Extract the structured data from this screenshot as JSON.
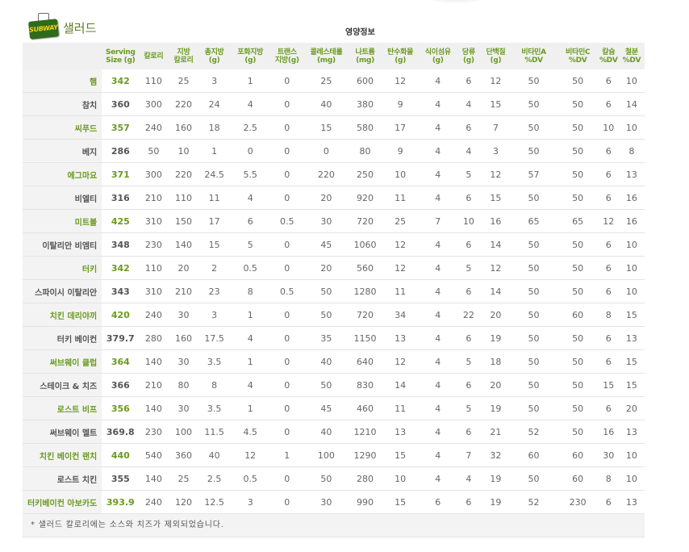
{
  "logo": {
    "text": "SUBWAY"
  },
  "section_title": "샐러드",
  "group_title": "영양정보",
  "columns": [
    [
      "Serving",
      "Size (g)"
    ],
    [
      "칼로리"
    ],
    [
      "지방",
      "칼로리"
    ],
    [
      "총지방",
      "(g)"
    ],
    [
      "포화지방",
      "(g)"
    ],
    [
      "트랜스",
      "지방(g)"
    ],
    [
      "콜레스테롤",
      "(mg)"
    ],
    [
      "나트륨",
      "(mg)"
    ],
    [
      "탄수화물",
      "(g)"
    ],
    [
      "식이섬유",
      "(g)"
    ],
    [
      "당류",
      "(g)"
    ],
    [
      "단백질",
      "(g)"
    ],
    [
      "비타민A",
      "%DV"
    ],
    [
      "비타민C",
      "%DV"
    ],
    [
      "칼슘",
      "%DV"
    ],
    [
      "철분",
      "%DV"
    ]
  ],
  "rows": [
    {
      "name": "햄",
      "hl": true,
      "values": [
        "342",
        "110",
        "25",
        "3",
        "1",
        "0",
        "25",
        "600",
        "12",
        "4",
        "6",
        "12",
        "50",
        "50",
        "6",
        "10"
      ]
    },
    {
      "name": "참치",
      "hl": false,
      "values": [
        "360",
        "300",
        "220",
        "24",
        "4",
        "0",
        "40",
        "380",
        "9",
        "4",
        "4",
        "15",
        "50",
        "50",
        "6",
        "14"
      ]
    },
    {
      "name": "씨푸드",
      "hl": true,
      "values": [
        "357",
        "240",
        "160",
        "18",
        "2.5",
        "0",
        "15",
        "580",
        "17",
        "4",
        "6",
        "7",
        "50",
        "50",
        "10",
        "10"
      ]
    },
    {
      "name": "베지",
      "hl": false,
      "values": [
        "286",
        "50",
        "10",
        "1",
        "0",
        "0",
        "0",
        "80",
        "9",
        "4",
        "4",
        "3",
        "50",
        "50",
        "6",
        "8"
      ]
    },
    {
      "name": "에그마요",
      "hl": true,
      "values": [
        "371",
        "300",
        "220",
        "24.5",
        "5.5",
        "0",
        "220",
        "250",
        "10",
        "4",
        "5",
        "12",
        "57",
        "50",
        "6",
        "13"
      ]
    },
    {
      "name": "비엘티",
      "hl": false,
      "values": [
        "316",
        "210",
        "110",
        "11",
        "4",
        "0",
        "20",
        "920",
        "11",
        "4",
        "6",
        "15",
        "50",
        "50",
        "6",
        "16"
      ]
    },
    {
      "name": "미트볼",
      "hl": true,
      "values": [
        "425",
        "310",
        "150",
        "17",
        "6",
        "0.5",
        "30",
        "720",
        "25",
        "7",
        "10",
        "16",
        "65",
        "65",
        "12",
        "16"
      ]
    },
    {
      "name": "이탈리안 비엠티",
      "hl": false,
      "values": [
        "348",
        "230",
        "140",
        "15",
        "5",
        "0",
        "45",
        "1060",
        "12",
        "4",
        "6",
        "14",
        "50",
        "50",
        "6",
        "10"
      ]
    },
    {
      "name": "터키",
      "hl": true,
      "values": [
        "342",
        "110",
        "20",
        "2",
        "0.5",
        "0",
        "20",
        "560",
        "12",
        "4",
        "5",
        "12",
        "50",
        "50",
        "6",
        "10"
      ]
    },
    {
      "name": "스파이시 이탈리안",
      "hl": false,
      "values": [
        "343",
        "310",
        "210",
        "23",
        "8",
        "0.5",
        "50",
        "1280",
        "11",
        "4",
        "6",
        "14",
        "50",
        "50",
        "6",
        "10"
      ]
    },
    {
      "name": "치킨 데리야끼",
      "hl": true,
      "values": [
        "420",
        "240",
        "30",
        "3",
        "1",
        "0",
        "50",
        "720",
        "34",
        "4",
        "22",
        "20",
        "50",
        "60",
        "8",
        "15"
      ]
    },
    {
      "name": "터키 베이컨",
      "hl": false,
      "values": [
        "379.7",
        "280",
        "160",
        "17.5",
        "4",
        "0",
        "35",
        "1150",
        "13",
        "4",
        "6",
        "19",
        "50",
        "50",
        "6",
        "13"
      ]
    },
    {
      "name": "써브웨이 클럽",
      "hl": true,
      "values": [
        "364",
        "140",
        "30",
        "3.5",
        "1",
        "0",
        "40",
        "640",
        "12",
        "4",
        "5",
        "18",
        "50",
        "50",
        "6",
        "15"
      ]
    },
    {
      "name": "스테이크 & 치즈",
      "hl": false,
      "values": [
        "366",
        "210",
        "80",
        "8",
        "4",
        "0",
        "50",
        "830",
        "14",
        "4",
        "6",
        "20",
        "50",
        "50",
        "15",
        "15"
      ]
    },
    {
      "name": "로스트 비프",
      "hl": true,
      "values": [
        "356",
        "140",
        "30",
        "3.5",
        "1",
        "0",
        "45",
        "460",
        "11",
        "4",
        "5",
        "19",
        "50",
        "50",
        "6",
        "20"
      ]
    },
    {
      "name": "써브웨이 멜트",
      "hl": false,
      "values": [
        "369.8",
        "230",
        "100",
        "11.5",
        "4.5",
        "0",
        "40",
        "1210",
        "13",
        "4",
        "6",
        "21",
        "52",
        "50",
        "16",
        "13"
      ]
    },
    {
      "name": "치킨 베이컨 랜치",
      "hl": true,
      "values": [
        "440",
        "540",
        "360",
        "40",
        "12",
        "1",
        "100",
        "1290",
        "15",
        "4",
        "7",
        "32",
        "60",
        "60",
        "30",
        "10"
      ]
    },
    {
      "name": "로스트 치킨",
      "hl": false,
      "values": [
        "355",
        "140",
        "25",
        "2.5",
        "0.5",
        "0",
        "50",
        "280",
        "10",
        "4",
        "4",
        "19",
        "50",
        "60",
        "8",
        "10"
      ]
    },
    {
      "name": "터키베이컨 아보카도",
      "hl": true,
      "values": [
        "393.9",
        "240",
        "120",
        "12.5",
        "3",
        "0",
        "30",
        "990",
        "15",
        "6",
        "6",
        "19",
        "52",
        "230",
        "6",
        "13"
      ]
    }
  ],
  "footnote": "* 샐러드 칼로리에는 소스와 치즈가 제외되었습니다.",
  "colors": {
    "accent_green": "#6a9a1f",
    "header_bg": "#f0f0f0",
    "logo_green": "#2e6b1a",
    "logo_yellow": "#f6d21a"
  }
}
